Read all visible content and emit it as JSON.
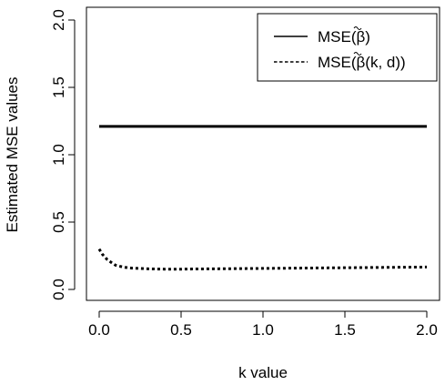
{
  "chart_data": {
    "type": "line",
    "title": "",
    "xlabel": "k value",
    "ylabel": "Estimated MSE values",
    "xlim": [
      0,
      2
    ],
    "ylim": [
      0,
      2
    ],
    "x_ticks": [
      "0.0",
      "0.5",
      "1.0",
      "1.5",
      "2.0"
    ],
    "y_ticks": [
      "0.0",
      "0.5",
      "1.0",
      "1.5",
      "2.0"
    ],
    "legend_position": "top-right",
    "series": [
      {
        "name": "MSE(β̃)",
        "name_parts": {
          "prefix": "MSE(",
          "symbol": "β",
          "args": "",
          "suffix": ")"
        },
        "line_style": "solid",
        "color": "#000000",
        "x": [
          0.0,
          0.25,
          0.5,
          0.75,
          1.0,
          1.25,
          1.5,
          1.75,
          2.0
        ],
        "values": [
          1.21,
          1.21,
          1.21,
          1.21,
          1.21,
          1.21,
          1.21,
          1.21,
          1.21
        ]
      },
      {
        "name": "MSE(β̃(k, d))",
        "name_parts": {
          "prefix": "MSE(",
          "symbol": "β",
          "args": "(k, d)",
          "suffix": ")"
        },
        "line_style": "dotted",
        "color": "#000000",
        "x": [
          0.0,
          0.02,
          0.05,
          0.08,
          0.1,
          0.15,
          0.2,
          0.3,
          0.4,
          0.5,
          0.6,
          0.8,
          1.0,
          1.2,
          1.4,
          1.6,
          1.8,
          2.0
        ],
        "values": [
          0.3,
          0.26,
          0.22,
          0.195,
          0.18,
          0.165,
          0.158,
          0.153,
          0.151,
          0.151,
          0.152,
          0.154,
          0.156,
          0.158,
          0.16,
          0.162,
          0.164,
          0.166
        ]
      }
    ]
  }
}
